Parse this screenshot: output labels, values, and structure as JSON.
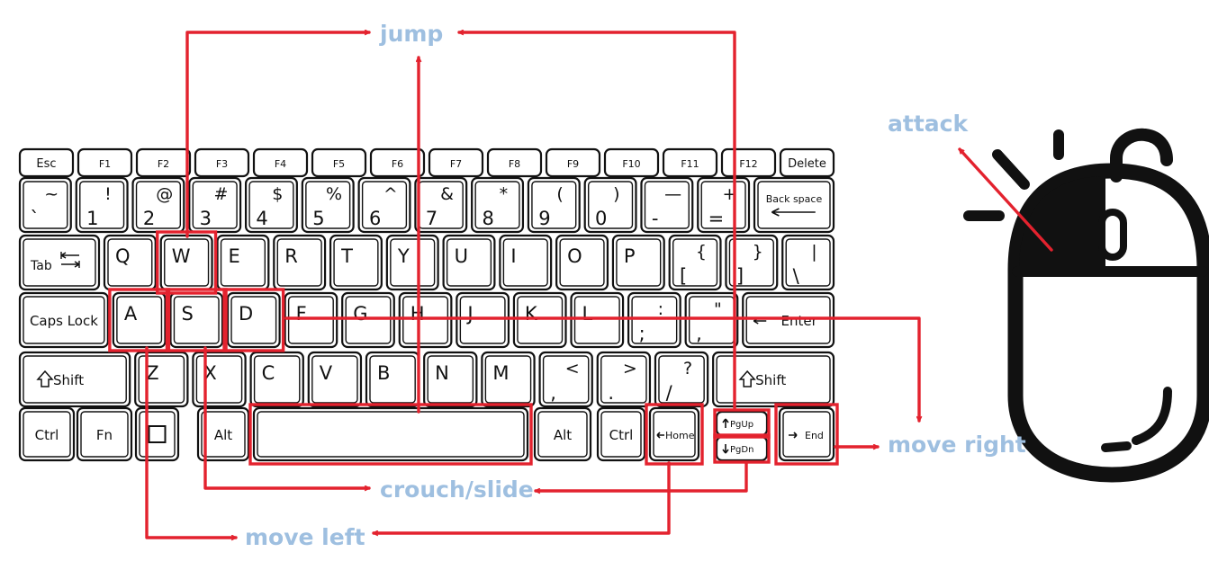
{
  "labels": {
    "jump": "jump",
    "attack": "attack",
    "move_right": "move right",
    "crouch_slide": "crouch/slide",
    "move_left": "move left"
  },
  "keyboard": {
    "rows": [
      [
        {
          "id": "esc",
          "t": "Esc"
        },
        {
          "id": "f1",
          "t": "F1"
        },
        {
          "id": "f2",
          "t": "F2"
        },
        {
          "id": "f3",
          "t": "F3"
        },
        {
          "id": "f4",
          "t": "F4"
        },
        {
          "id": "f5",
          "t": "F5"
        },
        {
          "id": "f6",
          "t": "F6"
        },
        {
          "id": "f7",
          "t": "F7"
        },
        {
          "id": "f8",
          "t": "F8"
        },
        {
          "id": "f9",
          "t": "F9"
        },
        {
          "id": "f10",
          "t": "F10"
        },
        {
          "id": "f11",
          "t": "F11"
        },
        {
          "id": "f12",
          "t": "F12"
        },
        {
          "id": "delete",
          "t": "Delete"
        }
      ],
      [
        {
          "id": "tilde",
          "t": "`",
          "s": "~"
        },
        {
          "id": "1",
          "t": "1",
          "s": "!"
        },
        {
          "id": "2",
          "t": "2",
          "s": "@"
        },
        {
          "id": "3",
          "t": "3",
          "s": "#"
        },
        {
          "id": "4",
          "t": "4",
          "s": "$"
        },
        {
          "id": "5",
          "t": "5",
          "s": "%"
        },
        {
          "id": "6",
          "t": "6",
          "s": "^"
        },
        {
          "id": "7",
          "t": "7",
          "s": "&"
        },
        {
          "id": "8",
          "t": "8",
          "s": "*"
        },
        {
          "id": "9",
          "t": "9",
          "s": "("
        },
        {
          "id": "0",
          "t": "0",
          "s": ")"
        },
        {
          "id": "minus",
          "t": "-",
          "s": "—"
        },
        {
          "id": "equals",
          "t": "=",
          "s": "+"
        },
        {
          "id": "backspace",
          "t": "Back space"
        }
      ],
      [
        {
          "id": "tab",
          "t": "Tab"
        },
        {
          "id": "q",
          "t": "Q"
        },
        {
          "id": "w",
          "t": "W"
        },
        {
          "id": "e",
          "t": "E"
        },
        {
          "id": "r",
          "t": "R"
        },
        {
          "id": "t",
          "t": "T"
        },
        {
          "id": "y",
          "t": "Y"
        },
        {
          "id": "u",
          "t": "U"
        },
        {
          "id": "i",
          "t": "I"
        },
        {
          "id": "o",
          "t": "O"
        },
        {
          "id": "p",
          "t": "P"
        },
        {
          "id": "lbracket",
          "t": "[",
          "s": "{"
        },
        {
          "id": "rbracket",
          "t": "]",
          "s": "}"
        },
        {
          "id": "backslash",
          "t": "\\",
          "s": "|"
        }
      ],
      [
        {
          "id": "capslock",
          "t": "Caps Lock"
        },
        {
          "id": "a",
          "t": "A"
        },
        {
          "id": "s",
          "t": "S"
        },
        {
          "id": "d",
          "t": "D"
        },
        {
          "id": "f",
          "t": "F"
        },
        {
          "id": "g",
          "t": "G"
        },
        {
          "id": "h",
          "t": "H"
        },
        {
          "id": "j",
          "t": "J"
        },
        {
          "id": "k",
          "t": "K"
        },
        {
          "id": "l",
          "t": "L"
        },
        {
          "id": "semicolon",
          "t": ";",
          "s": ":"
        },
        {
          "id": "quote",
          "t": ",",
          "s": "\""
        },
        {
          "id": "enter",
          "t": "Enter"
        }
      ],
      [
        {
          "id": "lshift",
          "t": "Shift"
        },
        {
          "id": "z",
          "t": "Z"
        },
        {
          "id": "x",
          "t": "X"
        },
        {
          "id": "c",
          "t": "C"
        },
        {
          "id": "v",
          "t": "V"
        },
        {
          "id": "b",
          "t": "B"
        },
        {
          "id": "n",
          "t": "N"
        },
        {
          "id": "m",
          "t": "M"
        },
        {
          "id": "comma",
          "t": ",",
          "s": "<"
        },
        {
          "id": "period",
          "t": ".",
          "s": ">"
        },
        {
          "id": "slash",
          "t": "/",
          "s": "?"
        },
        {
          "id": "rshift",
          "t": "Shift"
        }
      ],
      [
        {
          "id": "lctrl",
          "t": "Ctrl"
        },
        {
          "id": "fn",
          "t": "Fn"
        },
        {
          "id": "win",
          "t": ""
        },
        {
          "id": "lalt",
          "t": "Alt"
        },
        {
          "id": "space",
          "t": ""
        },
        {
          "id": "ralt",
          "t": "Alt"
        },
        {
          "id": "rctrl",
          "t": "Ctrl"
        },
        {
          "id": "home",
          "t": "Home"
        },
        {
          "id": "pgup",
          "t": "PgUp"
        },
        {
          "id": "pgdn",
          "t": "PgDn"
        },
        {
          "id": "end",
          "t": "End"
        }
      ]
    ],
    "highlighted": [
      "w",
      "a",
      "s",
      "d",
      "space",
      "home",
      "pgup",
      "pgdn",
      "end"
    ]
  },
  "colors": {
    "arrow": "#e3222e",
    "label": "#9ebfe0",
    "key_outline": "#111111"
  },
  "icons": [
    "mouse-icon",
    "tab-arrows-icon",
    "shift-arrow-icon",
    "enter-arrow-icon",
    "backspace-arrow-icon",
    "windows-key-icon"
  ]
}
